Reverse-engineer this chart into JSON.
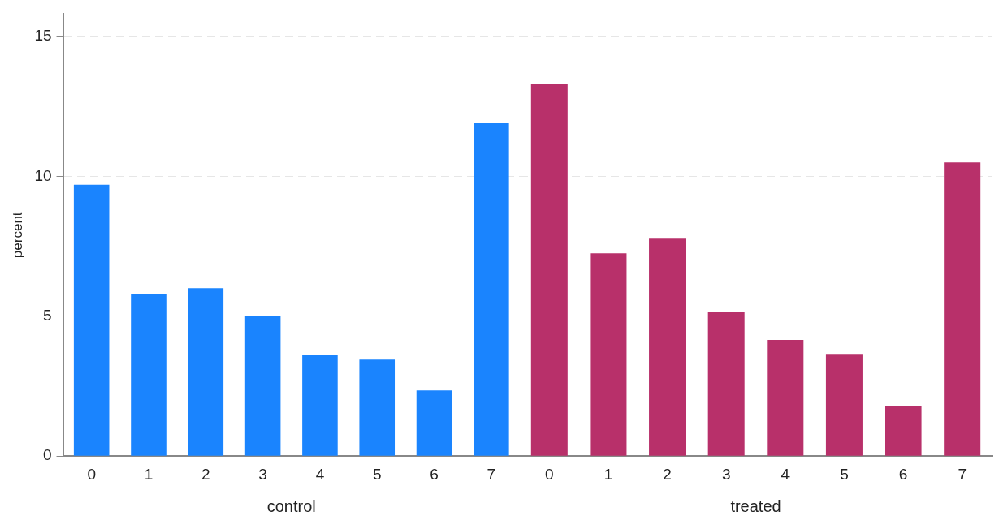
{
  "chart_data": [
    {
      "type": "bar",
      "xlabel": "control",
      "ylabel": "percent",
      "categories": [
        "0",
        "1",
        "2",
        "3",
        "4",
        "5",
        "6",
        "7"
      ],
      "values": [
        9.7,
        5.8,
        6.0,
        5.0,
        3.6,
        3.45,
        2.35,
        11.9
      ],
      "color": "#1a84fe",
      "ylim": [
        0,
        15.8
      ],
      "yticks": [
        0,
        5,
        10,
        15
      ],
      "grid": "y"
    },
    {
      "type": "bar",
      "xlabel": "treated",
      "categories": [
        "0",
        "1",
        "2",
        "3",
        "4",
        "5",
        "6",
        "7"
      ],
      "values": [
        13.3,
        7.25,
        7.8,
        5.15,
        4.15,
        3.65,
        1.8,
        10.5
      ],
      "color": "#b8306a",
      "yticks": [
        0,
        5,
        10,
        15
      ],
      "grid": "y",
      "tick_labels": "x"
    }
  ]
}
